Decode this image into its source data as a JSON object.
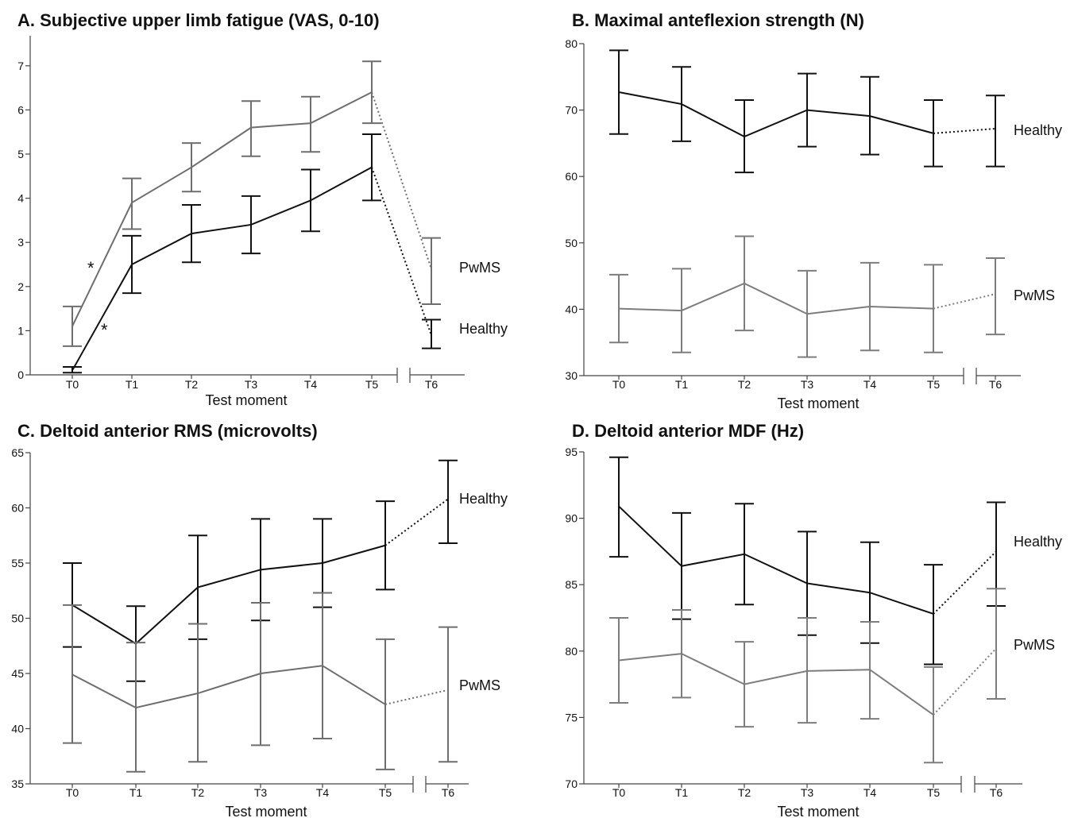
{
  "chart_data": [
    {
      "type": "line",
      "title": "A. Subjective upper limb fatigue (VAS, 0-10)",
      "xlabel": "Test moment",
      "ylabel": "",
      "categories": [
        "T0",
        "T1",
        "T2",
        "T3",
        "T4",
        "T5",
        "T6"
      ],
      "ylim": [
        0,
        7.5
      ],
      "yticks": [
        0,
        1,
        2,
        3,
        4,
        5,
        6,
        7
      ],
      "axis_break_between": [
        "T5",
        "T6"
      ],
      "dotted_segment_between": [
        "T5",
        "T6"
      ],
      "grid": false,
      "annotations": [
        "*",
        "*"
      ],
      "series": [
        {
          "name": "PwMS",
          "color": "#6e6e6e",
          "values": [
            1.1,
            3.9,
            4.7,
            5.6,
            5.7,
            6.4,
            2.4
          ],
          "upper": [
            1.55,
            4.45,
            5.25,
            6.2,
            6.3,
            7.1,
            3.1
          ],
          "lower": [
            0.65,
            3.3,
            4.15,
            4.95,
            5.05,
            5.7,
            1.6
          ]
        },
        {
          "name": "Healthy",
          "color": "#111111",
          "values": [
            0.1,
            2.5,
            3.2,
            3.4,
            3.95,
            4.7,
            0.9
          ],
          "upper": [
            0.18,
            3.15,
            3.85,
            4.05,
            4.65,
            5.45,
            1.25
          ],
          "lower": [
            0.05,
            1.85,
            2.55,
            2.75,
            3.25,
            3.95,
            0.6
          ]
        }
      ]
    },
    {
      "type": "line",
      "title": "B. Maximal anteflexion strength (N)",
      "xlabel": "Test moment",
      "ylabel": "",
      "categories": [
        "T0",
        "T1",
        "T2",
        "T3",
        "T4",
        "T5",
        "T6"
      ],
      "ylim": [
        30,
        80
      ],
      "yticks": [
        30,
        40,
        50,
        60,
        70,
        80
      ],
      "axis_break_between": [
        "T5",
        "T6"
      ],
      "dotted_segment_between": [
        "T5",
        "T6"
      ],
      "grid": false,
      "series": [
        {
          "name": "Healthy",
          "color": "#111111",
          "values": [
            72.7,
            70.9,
            66.0,
            70.0,
            69.1,
            66.5,
            67.2
          ],
          "upper": [
            79.0,
            76.5,
            71.5,
            75.5,
            75.0,
            71.5,
            72.2
          ],
          "lower": [
            66.4,
            65.3,
            60.6,
            64.5,
            63.3,
            61.5,
            61.5
          ]
        },
        {
          "name": "PwMS",
          "color": "#7d7d7d",
          "values": [
            40.1,
            39.8,
            43.9,
            39.3,
            40.4,
            40.1,
            42.3
          ],
          "upper": [
            45.2,
            46.1,
            51.0,
            45.8,
            47.0,
            46.7,
            47.7
          ],
          "lower": [
            35.0,
            33.5,
            36.8,
            32.8,
            33.8,
            33.5,
            36.2
          ]
        }
      ]
    },
    {
      "type": "line",
      "title": "C. Deltoid anterior RMS (microvolts)",
      "xlabel": "Test moment",
      "ylabel": "",
      "categories": [
        "T0",
        "T1",
        "T2",
        "T3",
        "T4",
        "T5",
        "T6"
      ],
      "ylim": [
        35,
        65
      ],
      "yticks": [
        35,
        40,
        45,
        50,
        55,
        60,
        65
      ],
      "axis_break_between": [
        "T5",
        "T6"
      ],
      "dotted_segment_between": [
        "T5",
        "T6"
      ],
      "grid": false,
      "series": [
        {
          "name": "Healthy",
          "color": "#111111",
          "values": [
            51.2,
            47.7,
            52.8,
            54.4,
            55.0,
            56.6,
            60.8
          ],
          "upper": [
            55.0,
            51.1,
            57.5,
            59.0,
            59.0,
            60.6,
            64.3
          ],
          "lower": [
            47.4,
            44.3,
            48.1,
            49.8,
            51.0,
            52.6,
            56.8
          ]
        },
        {
          "name": "PwMS",
          "color": "#6e6e6e",
          "values": [
            44.9,
            41.9,
            43.2,
            45.0,
            45.7,
            42.2,
            43.5
          ],
          "upper": [
            51.2,
            47.8,
            49.5,
            51.4,
            52.3,
            48.1,
            49.2
          ],
          "lower": [
            38.7,
            36.1,
            37.0,
            38.5,
            39.1,
            36.3,
            37.0
          ]
        }
      ]
    },
    {
      "type": "line",
      "title": "D. Deltoid anterior MDF (Hz)",
      "xlabel": "Test moment",
      "ylabel": "",
      "categories": [
        "T0",
        "T1",
        "T2",
        "T3",
        "T4",
        "T5",
        "T6"
      ],
      "ylim": [
        70,
        95
      ],
      "yticks": [
        70,
        75,
        80,
        85,
        90,
        95
      ],
      "axis_break_between": [
        "T5",
        "T6"
      ],
      "dotted_segment_between": [
        "T5",
        "T6"
      ],
      "grid": false,
      "series": [
        {
          "name": "Healthy",
          "color": "#111111",
          "values": [
            90.9,
            86.4,
            87.3,
            85.1,
            84.4,
            82.8,
            87.5
          ],
          "upper": [
            94.6,
            90.4,
            91.1,
            89.0,
            88.2,
            86.5,
            91.2
          ],
          "lower": [
            87.1,
            82.4,
            83.5,
            81.2,
            80.6,
            79.0,
            83.4
          ]
        },
        {
          "name": "PwMS",
          "color": "#7d7d7d",
          "values": [
            79.3,
            79.8,
            77.5,
            78.5,
            78.6,
            75.2,
            80.2
          ],
          "upper": [
            82.5,
            83.1,
            80.7,
            82.5,
            82.2,
            78.8,
            84.7
          ],
          "lower": [
            76.1,
            76.5,
            74.3,
            74.6,
            74.9,
            71.6,
            76.4
          ]
        }
      ]
    }
  ]
}
